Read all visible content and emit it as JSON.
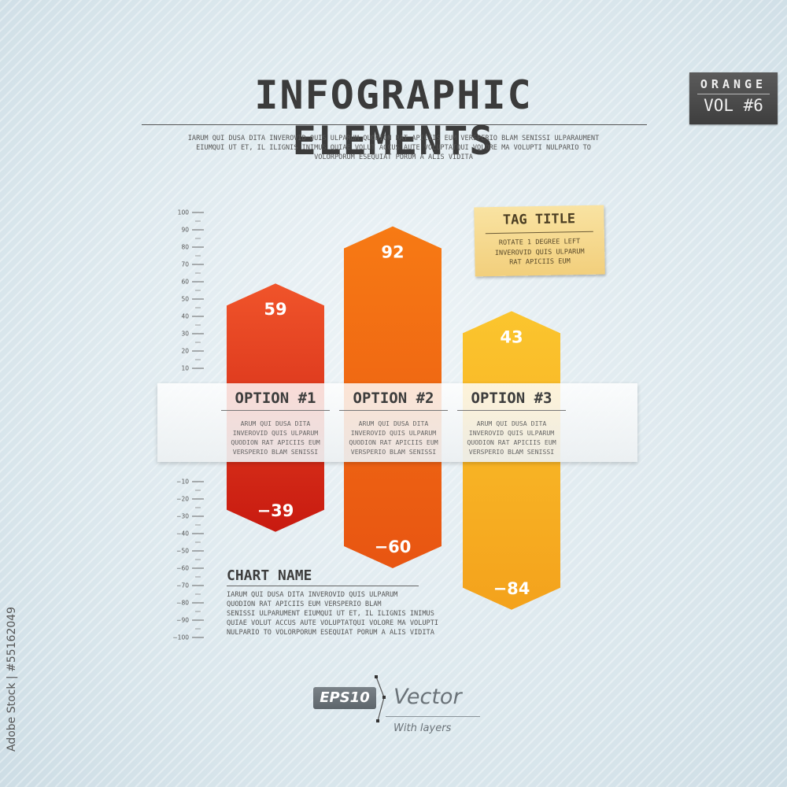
{
  "header": {
    "title": "INFOGRAPHIC ELEMENTS",
    "intro_lines": [
      "IARUM QUI DUSA DITA INVEROVID QUIS ULPARUM QUODION RAT APICIIS EUM VERSPERIO BLAM SENISSI ULPARAUMENT",
      "EIUMQUI UT ET, IL ILIGNIS INIMUS QUIAE VOLUT ACCUS AUTE VOLUPTATQUI VOLORE MA VOLUPTI NULPARIO TO",
      "VOLORPORUM ESEQUIAT PORUM A ALIS VIDITA"
    ]
  },
  "badge": {
    "top": "ORANGE",
    "bottom": "VOL #6"
  },
  "tag": {
    "title": "TAG TITLE",
    "lines": [
      "ROTATE 1 DEGREE LEFT",
      "INVEROVID QUIS ULPARUM",
      "RAT APICIIS EUM"
    ]
  },
  "chart_data": {
    "type": "bar",
    "title": "",
    "ylim": [
      -100,
      100
    ],
    "y_ticks": [
      100,
      90,
      80,
      70,
      60,
      50,
      40,
      30,
      20,
      10,
      -10,
      -20,
      -30,
      -40,
      -50,
      -60,
      -70,
      -80,
      -90,
      -100
    ],
    "categories": [
      "OPTION #1",
      "OPTION #2",
      "OPTION #3"
    ],
    "series": [
      {
        "values": [
          59,
          92,
          43
        ]
      },
      {
        "values": [
          -39,
          -60,
          -84
        ]
      }
    ],
    "value_labels_pos": [
      "59",
      "92",
      "43"
    ],
    "value_labels_neg": [
      "−39",
      "−60",
      "−84"
    ],
    "colors": [
      {
        "top": "#f0542a",
        "bottom": "#c81a10"
      },
      {
        "top": "#f77a14",
        "bottom": "#e85512"
      },
      {
        "top": "#fbc52e",
        "bottom": "#f4a21c"
      }
    ],
    "descriptions": [
      [
        "ARUM QUI DUSA DITA",
        "INVEROVID QUIS ULPARUM",
        "QUODION RAT APICIIS EUM",
        "VERSPERIO BLAM SENISSI"
      ],
      [
        "ARUM QUI DUSA DITA",
        "INVEROVID QUIS ULPARUM",
        "QUODION RAT APICIIS EUM",
        "VERSPERIO BLAM SENISSI"
      ],
      [
        "ARUM QUI DUSA DITA",
        "INVEROVID QUIS ULPARUM",
        "QUODION RAT APICIIS EUM",
        "VERSPERIO BLAM SENISSI"
      ]
    ],
    "grid": false
  },
  "chart_name": {
    "title": "CHART NAME",
    "lines": [
      "IARUM QUI DUSA DITA INVEROVID QUIS ULPARUM",
      "QUODION RAT APICIIS EUM VERSPERIO BLAM",
      "SENISSI ULPARUMENT EIUMQUI UT ET, IL ILIGNIS INIMUS",
      "QUIAE VOLUT ACCUS AUTE VOLUPTATQUI VOLORE MA VOLUPTI",
      "NULPARIO TO VOLORPORUM ESEQUIAT PORUM A ALIS VIDITA"
    ]
  },
  "footer": {
    "eps": "EPS10",
    "vector": "Vector",
    "layers": "With layers"
  },
  "stock_id": "Adobe Stock | #55162049"
}
